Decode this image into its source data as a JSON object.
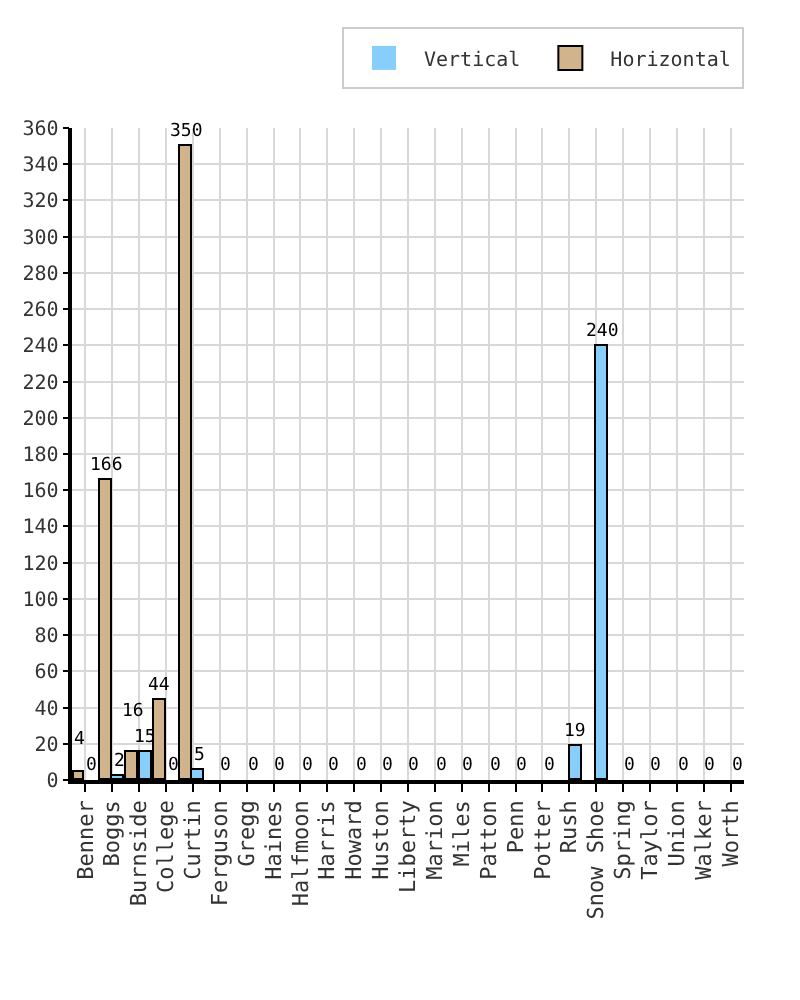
{
  "chart_data": {
    "type": "bar",
    "categories": [
      "Benner",
      "Boggs",
      "Burnside",
      "College",
      "Curtin",
      "Ferguson",
      "Gregg",
      "Haines",
      "Halfmoon",
      "Harris",
      "Howard",
      "Huston",
      "Liberty",
      "Marion",
      "Miles",
      "Patton",
      "Penn",
      "Potter",
      "Rush",
      "Snow Shoe",
      "Spring",
      "Taylor",
      "Union",
      "Walker",
      "Worth"
    ],
    "series": [
      {
        "name": "Horizontal",
        "color": "#d2b48c",
        "values": [
          4,
          166,
          16,
          44,
          350,
          null,
          null,
          null,
          null,
          null,
          null,
          null,
          null,
          null,
          null,
          null,
          null,
          null,
          null,
          null,
          null,
          null,
          null,
          null,
          null
        ]
      },
      {
        "name": "Vertical",
        "color": "#87cefa",
        "values": [
          0,
          2,
          15,
          0,
          5,
          0,
          0,
          0,
          0,
          0,
          0,
          0,
          0,
          0,
          0,
          0,
          0,
          0,
          19,
          240,
          0,
          0,
          0,
          0,
          0
        ]
      }
    ],
    "ylim": [
      0,
      360
    ],
    "yticks": [
      0,
      20,
      40,
      60,
      80,
      100,
      120,
      140,
      160,
      180,
      200,
      220,
      240,
      260,
      280,
      300,
      320,
      340,
      360
    ],
    "grid": true,
    "legend": "top right",
    "data_labels": true
  }
}
